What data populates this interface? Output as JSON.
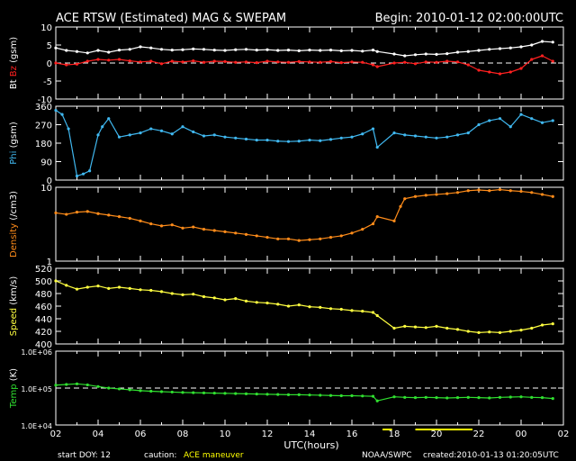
{
  "header": {
    "title": "ACE RTSW (Estimated) MAG & SWEPAM",
    "begin": "Begin: 2010-01-12 02:00:00UTC"
  },
  "footer": {
    "start_doy": "start DOY:  12",
    "caution_label": "caution:",
    "caution_value": "ACE maneuver",
    "source": "NOAA/SWPC",
    "created": "created:2010-01-13 01:20:05UTC"
  },
  "colors": {
    "bt": "#ffffff",
    "bz": "#ff2020",
    "phi": "#40b8f0",
    "density": "#ff8c1a",
    "speed": "#ffff40",
    "temp": "#30e030",
    "caution": "#ffff00"
  },
  "chart_data": {
    "type": "scatter",
    "xlabel": "UTC(hours)",
    "xlim": [
      2,
      26
    ],
    "xticks": [
      "02",
      "04",
      "06",
      "08",
      "10",
      "12",
      "14",
      "16",
      "18",
      "20",
      "22",
      "00",
      "02"
    ],
    "caution_segments": [
      [
        17.45,
        17.9
      ],
      [
        19.0,
        21.7
      ]
    ],
    "panels": [
      {
        "id": "mag",
        "ylabel_parts": [
          {
            "text": "Bt",
            "color": "#ffffff"
          },
          {
            "text": " Bz",
            "color": "#ff2020"
          },
          {
            "text": "  (gsm)",
            "color": "#ffffff"
          }
        ],
        "ylim": [
          -10,
          10
        ],
        "yticks": [
          "10",
          "5",
          "0",
          "-5",
          "-10"
        ],
        "ytick_values": [
          10,
          5,
          0,
          -5,
          -10
        ],
        "dashed_ref": 0,
        "series": [
          {
            "key": "bt",
            "color": "#ffffff",
            "x": [
              2,
              2.5,
              3,
              3.5,
              4,
              4.5,
              5,
              5.5,
              6,
              6.5,
              7,
              7.5,
              8,
              8.5,
              9,
              9.5,
              10,
              10.5,
              11,
              11.5,
              12,
              12.5,
              13,
              13.5,
              14,
              14.5,
              15,
              15.5,
              16,
              16.5,
              17,
              17.2,
              18,
              18.5,
              19,
              19.5,
              20,
              20.5,
              21,
              21.5,
              22,
              22.5,
              23,
              23.5,
              24,
              24.5,
              25,
              25.5
            ],
            "y": [
              4.2,
              3.5,
              3.2,
              2.8,
              3.5,
              3,
              3.6,
              3.8,
              4.5,
              4.2,
              3.8,
              3.6,
              3.7,
              3.9,
              3.8,
              3.6,
              3.5,
              3.7,
              3.8,
              3.6,
              3.7,
              3.5,
              3.6,
              3.4,
              3.6,
              3.5,
              3.6,
              3.4,
              3.5,
              3.3,
              3.6,
              3.2,
              2.5,
              2,
              2.3,
              2.5,
              2.4,
              2.6,
              3,
              3.2,
              3.5,
              3.8,
              4,
              4.2,
              4.5,
              5,
              6,
              5.8
            ]
          },
          {
            "key": "bz",
            "color": "#ff2020",
            "x": [
              2,
              2.5,
              3,
              3.5,
              4,
              4.5,
              5,
              5.5,
              6,
              6.5,
              7,
              7.5,
              8,
              8.5,
              9,
              9.5,
              10,
              10.5,
              11,
              11.5,
              12,
              12.5,
              13,
              13.5,
              14,
              14.5,
              15,
              15.5,
              16,
              16.5,
              17,
              17.2,
              18,
              18.5,
              19,
              19.5,
              20,
              20.5,
              21,
              21.5,
              22,
              22.5,
              23,
              23.5,
              24,
              24.5,
              25,
              25.5
            ],
            "y": [
              0,
              -0.5,
              -0.3,
              0.5,
              1,
              0.8,
              1,
              0.6,
              0.3,
              0.5,
              -0.2,
              0.5,
              0.3,
              0.6,
              0.2,
              0.5,
              0.4,
              0.2,
              0.3,
              0.1,
              0.5,
              0.3,
              0.2,
              0.4,
              0.3,
              0.2,
              0.4,
              0.1,
              0.3,
              0.2,
              -0.5,
              -1,
              0,
              0.2,
              -0.2,
              0.3,
              0.2,
              0.5,
              0.3,
              -0.5,
              -2,
              -2.5,
              -3,
              -2.5,
              -1.5,
              1,
              2,
              0.5
            ]
          }
        ]
      },
      {
        "id": "phi",
        "ylabel_parts": [
          {
            "text": "Phi",
            "color": "#40b8f0"
          },
          {
            "text": " (gsm)",
            "color": "#ffffff"
          }
        ],
        "ylim": [
          0,
          360
        ],
        "yticks": [
          "360",
          "270",
          "180",
          "90",
          "0"
        ],
        "ytick_values": [
          360,
          270,
          180,
          90,
          0
        ],
        "series": [
          {
            "key": "phi",
            "color": "#40b8f0",
            "x": [
              2,
              2.3,
              2.6,
              3,
              3.3,
              3.6,
              4,
              4.2,
              4.5,
              5,
              5.5,
              6,
              6.5,
              7,
              7.5,
              8,
              8.5,
              9,
              9.5,
              10,
              10.5,
              11,
              11.5,
              12,
              12.5,
              13,
              13.5,
              14,
              14.5,
              15,
              15.5,
              16,
              16.5,
              17,
              17.2,
              18,
              18.5,
              19,
              19.5,
              20,
              20.5,
              21,
              21.5,
              22,
              22.5,
              23,
              23.5,
              24,
              24.5,
              25,
              25.5
            ],
            "y": [
              340,
              320,
              250,
              20,
              30,
              45,
              220,
              260,
              300,
              210,
              220,
              230,
              250,
              240,
              225,
              260,
              235,
              215,
              220,
              210,
              205,
              200,
              195,
              195,
              190,
              188,
              190,
              195,
              192,
              198,
              205,
              210,
              225,
              250,
              160,
              230,
              220,
              215,
              210,
              205,
              210,
              220,
              230,
              270,
              290,
              300,
              260,
              320,
              300,
              280,
              290
            ]
          }
        ]
      },
      {
        "id": "density",
        "ylabel_parts": [
          {
            "text": "Density",
            "color": "#ff8c1a"
          },
          {
            "text": " (/cm3)",
            "color": "#ffffff"
          }
        ],
        "log": true,
        "ylim": [
          1,
          10
        ],
        "yticks": [
          "10",
          "1"
        ],
        "ytick_values": [
          10,
          1
        ],
        "series": [
          {
            "key": "density",
            "color": "#ff8c1a",
            "x": [
              2,
              2.5,
              3,
              3.5,
              4,
              4.5,
              5,
              5.5,
              6,
              6.5,
              7,
              7.5,
              8,
              8.5,
              9,
              9.5,
              10,
              10.5,
              11,
              11.5,
              12,
              12.5,
              13,
              13.5,
              14,
              14.5,
              15,
              15.5,
              16,
              16.5,
              17,
              17.2,
              18,
              18.3,
              18.5,
              19,
              19.5,
              20,
              20.5,
              21,
              21.5,
              22,
              22.5,
              23,
              23.5,
              24,
              24.5,
              25,
              25.5
            ],
            "y": [
              4.5,
              4.3,
              4.6,
              4.7,
              4.4,
              4.2,
              4.0,
              3.8,
              3.5,
              3.2,
              3.0,
              3.1,
              2.8,
              2.9,
              2.7,
              2.6,
              2.5,
              2.4,
              2.3,
              2.2,
              2.1,
              2.0,
              2.0,
              1.9,
              1.95,
              2.0,
              2.1,
              2.2,
              2.4,
              2.7,
              3.2,
              4.0,
              3.5,
              5.5,
              7.0,
              7.5,
              7.8,
              8.0,
              8.2,
              8.5,
              9.0,
              9.2,
              9.0,
              9.3,
              9.0,
              8.8,
              8.5,
              8.0,
              7.5
            ]
          }
        ]
      },
      {
        "id": "speed",
        "ylabel_parts": [
          {
            "text": "Speed",
            "color": "#ffff40"
          },
          {
            "text": " (km/s)",
            "color": "#ffffff"
          }
        ],
        "ylim": [
          400,
          520
        ],
        "yticks": [
          "520",
          "500",
          "480",
          "460",
          "440",
          "420",
          "400"
        ],
        "ytick_values": [
          520,
          500,
          480,
          460,
          440,
          420,
          400
        ],
        "series": [
          {
            "key": "speed",
            "color": "#ffff40",
            "x": [
              2,
              2.5,
              3,
              3.5,
              4,
              4.5,
              5,
              5.5,
              6,
              6.5,
              7,
              7.5,
              8,
              8.5,
              9,
              9.5,
              10,
              10.5,
              11,
              11.5,
              12,
              12.5,
              13,
              13.5,
              14,
              14.5,
              15,
              15.5,
              16,
              16.5,
              17,
              17.2,
              18,
              18.5,
              19,
              19.5,
              20,
              20.5,
              21,
              21.5,
              22,
              22.5,
              23,
              23.5,
              24,
              24.5,
              25,
              25.5
            ],
            "y": [
              500,
              493,
              487,
              490,
              492,
              488,
              490,
              488,
              486,
              485,
              483,
              480,
              478,
              479,
              475,
              473,
              470,
              472,
              468,
              466,
              465,
              463,
              460,
              462,
              459,
              458,
              456,
              455,
              453,
              452,
              450,
              445,
              425,
              428,
              427,
              426,
              428,
              425,
              423,
              420,
              418,
              419,
              418,
              420,
              422,
              425,
              430,
              432
            ]
          }
        ]
      },
      {
        "id": "temp",
        "ylabel_parts": [
          {
            "text": "Temp",
            "color": "#30e030"
          },
          {
            "text": " (K)",
            "color": "#ffffff"
          }
        ],
        "log": true,
        "ylim": [
          10000,
          1000000
        ],
        "yticks": [
          "1.0E+06",
          "1.0E+05",
          "1.0E+04"
        ],
        "ytick_values": [
          1000000,
          100000,
          10000
        ],
        "dashed_ref": 100000,
        "series": [
          {
            "key": "temp",
            "color": "#30e030",
            "x": [
              2,
              2.5,
              3,
              3.5,
              4,
              4.5,
              5,
              5.5,
              6,
              6.5,
              7,
              7.5,
              8,
              8.5,
              9,
              9.5,
              10,
              10.5,
              11,
              11.5,
              12,
              12.5,
              13,
              13.5,
              14,
              14.5,
              15,
              15.5,
              16,
              16.5,
              17,
              17.2,
              18,
              18.5,
              19,
              19.5,
              20,
              20.5,
              21,
              21.5,
              22,
              22.5,
              23,
              23.5,
              24,
              24.5,
              25,
              25.5
            ],
            "y": [
              120000,
              125000,
              130000,
              122000,
              110000,
              100000,
              95000,
              90000,
              85000,
              82000,
              80000,
              78000,
              76000,
              75000,
              74000,
              73000,
              72000,
              71000,
              70000,
              69000,
              68000,
              67000,
              66000,
              66000,
              65000,
              64000,
              63000,
              62000,
              62000,
              61000,
              60000,
              45000,
              58000,
              56000,
              55000,
              56000,
              55000,
              54000,
              55000,
              56000,
              55000,
              54000,
              56000,
              57000,
              58000,
              56000,
              55000,
              52000
            ]
          }
        ]
      }
    ]
  }
}
